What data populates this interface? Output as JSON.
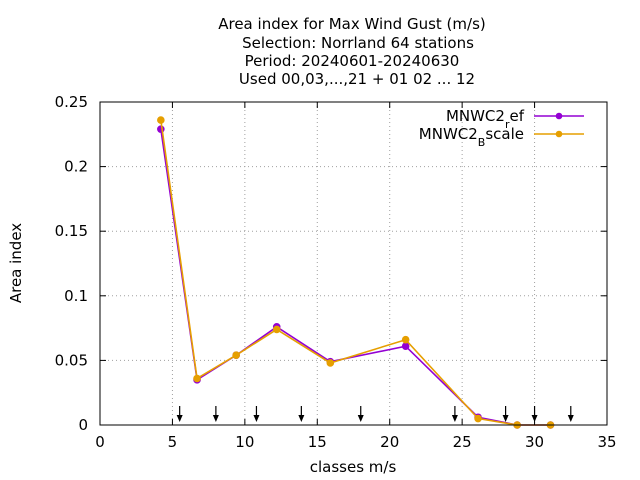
{
  "chart_data": {
    "type": "line",
    "title_lines": [
      "Area index  for Max Wind Gust (m/s)",
      "Selection: Norrland     64 stations",
      "Period: 20240601-20240630",
      "Used 00,03,...,21 + 01 02 ... 12"
    ],
    "xlabel": "classes m/s",
    "ylabel": "Area index",
    "xlim": [
      0,
      35
    ],
    "ylim": [
      0,
      0.25
    ],
    "xticks": [
      "0",
      "5",
      "10",
      "15",
      "20",
      "25",
      "30",
      "35"
    ],
    "yticks": [
      "0",
      "0.05",
      "0.1",
      "0.15",
      "0.2",
      "0.25"
    ],
    "grid": true,
    "legend_position": "top-right",
    "series": [
      {
        "name": "MNWC2_ref",
        "legend_main": "MNWC2",
        "legend_sub": "r",
        "legend_rest": "ef",
        "color": "#9400d3",
        "x": [
          4.2,
          6.7,
          9.4,
          12.2,
          15.9,
          21.1,
          26.1,
          28.8,
          31.1
        ],
        "y": [
          0.229,
          0.035,
          0.054,
          0.076,
          0.049,
          0.061,
          0.006,
          0.0,
          0.0
        ]
      },
      {
        "name": "MNWC2_Bscale",
        "legend_main": "MNWC2",
        "legend_sub": "B",
        "legend_rest": "scale",
        "color": "#e69f00",
        "x": [
          4.2,
          6.7,
          9.4,
          12.2,
          15.9,
          21.1,
          26.1,
          28.8,
          31.1
        ],
        "y": [
          0.236,
          0.036,
          0.054,
          0.074,
          0.048,
          0.066,
          0.005,
          0.0,
          0.0
        ]
      }
    ],
    "threshold_arrows_x": [
      5.5,
      8,
      10.8,
      13.9,
      18,
      24.5,
      28,
      30,
      32.5
    ]
  }
}
